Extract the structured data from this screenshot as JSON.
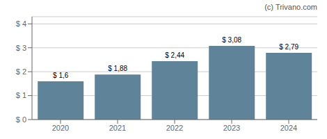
{
  "chart_data": {
    "type": "bar",
    "annotations": [
      "(c) Trivano.com"
    ],
    "categories": [
      "2020",
      "2021",
      "2022",
      "2023",
      "2024"
    ],
    "values": [
      1.6,
      1.88,
      2.44,
      3.08,
      2.79
    ],
    "value_labels": [
      "$ 1,6",
      "$ 1,88",
      "$ 2,44",
      "$ 3,08",
      "$ 2,79"
    ],
    "color": "#5f8499",
    "ylim": [
      0,
      4.3
    ],
    "yticks": [
      {
        "value": 0,
        "label": "$ 0"
      },
      {
        "value": 1,
        "label": "$ 1"
      },
      {
        "value": 2,
        "label": "$ 2"
      },
      {
        "value": 3,
        "label": "$ 3"
      },
      {
        "value": 4,
        "label": "$ 4"
      }
    ],
    "grid": true,
    "data_labels": true
  }
}
